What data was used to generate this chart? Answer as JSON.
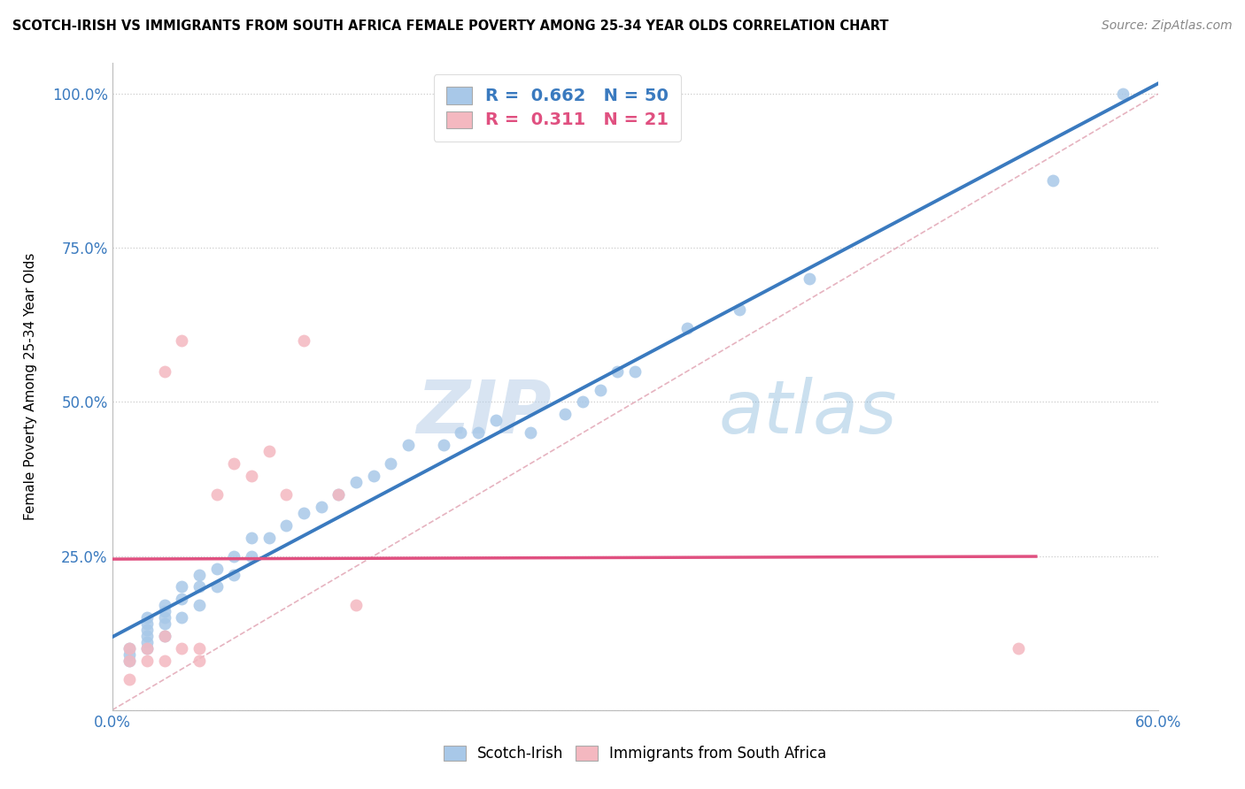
{
  "title": "SCOTCH-IRISH VS IMMIGRANTS FROM SOUTH AFRICA FEMALE POVERTY AMONG 25-34 YEAR OLDS CORRELATION CHART",
  "source": "Source: ZipAtlas.com",
  "ylabel": "Female Poverty Among 25-34 Year Olds",
  "xlim": [
    0.0,
    0.6
  ],
  "ylim": [
    0.0,
    1.05
  ],
  "x_ticks": [
    0.0,
    0.1,
    0.2,
    0.3,
    0.4,
    0.5,
    0.6
  ],
  "x_tick_labels": [
    "0.0%",
    "",
    "",
    "",
    "",
    "",
    "60.0%"
  ],
  "y_ticks": [
    0.0,
    0.25,
    0.5,
    0.75,
    1.0
  ],
  "y_tick_labels": [
    "",
    "25.0%",
    "50.0%",
    "75.0%",
    "100.0%"
  ],
  "scotch_irish_color": "#a8c8e8",
  "immigrants_sa_color": "#f4b8c0",
  "regression_scotch_color": "#3a7abf",
  "regression_sa_color": "#e05080",
  "diagonal_color": "#e0a0b0",
  "R_scotch": 0.662,
  "N_scotch": 50,
  "R_sa": 0.311,
  "N_sa": 21,
  "watermark_zip": "ZIP",
  "watermark_atlas": "atlas",
  "scotch_irish_x": [
    0.01,
    0.01,
    0.01,
    0.02,
    0.02,
    0.02,
    0.02,
    0.02,
    0.02,
    0.03,
    0.03,
    0.03,
    0.03,
    0.03,
    0.04,
    0.04,
    0.04,
    0.05,
    0.05,
    0.05,
    0.06,
    0.06,
    0.07,
    0.07,
    0.08,
    0.08,
    0.09,
    0.1,
    0.11,
    0.12,
    0.13,
    0.14,
    0.15,
    0.16,
    0.17,
    0.19,
    0.2,
    0.21,
    0.22,
    0.24,
    0.26,
    0.27,
    0.28,
    0.29,
    0.3,
    0.33,
    0.36,
    0.4,
    0.54,
    0.58
  ],
  "scotch_irish_y": [
    0.08,
    0.09,
    0.1,
    0.1,
    0.11,
    0.12,
    0.13,
    0.14,
    0.15,
    0.12,
    0.14,
    0.15,
    0.16,
    0.17,
    0.15,
    0.18,
    0.2,
    0.17,
    0.2,
    0.22,
    0.2,
    0.23,
    0.22,
    0.25,
    0.25,
    0.28,
    0.28,
    0.3,
    0.32,
    0.33,
    0.35,
    0.37,
    0.38,
    0.4,
    0.43,
    0.43,
    0.45,
    0.45,
    0.47,
    0.45,
    0.48,
    0.5,
    0.52,
    0.55,
    0.55,
    0.62,
    0.65,
    0.7,
    0.86,
    1.0
  ],
  "immigrants_sa_x": [
    0.01,
    0.01,
    0.01,
    0.02,
    0.02,
    0.03,
    0.03,
    0.03,
    0.04,
    0.04,
    0.05,
    0.05,
    0.06,
    0.07,
    0.08,
    0.09,
    0.1,
    0.11,
    0.13,
    0.14,
    0.52
  ],
  "immigrants_sa_y": [
    0.05,
    0.08,
    0.1,
    0.08,
    0.1,
    0.08,
    0.12,
    0.55,
    0.1,
    0.6,
    0.08,
    0.1,
    0.35,
    0.4,
    0.38,
    0.42,
    0.35,
    0.6,
    0.35,
    0.17,
    0.1
  ]
}
